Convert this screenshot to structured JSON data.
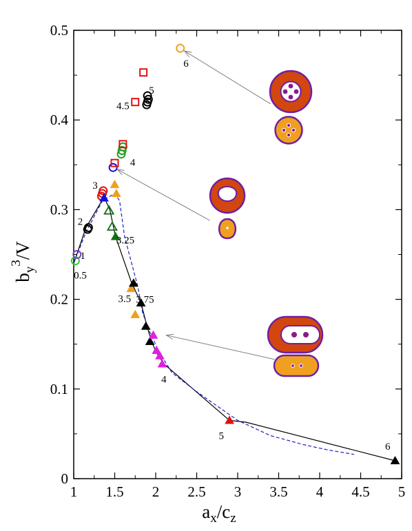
{
  "chart_data": {
    "type": "scatter",
    "xlabel_main": "a",
    "xlabel_sub1": "x",
    "xlabel_mid": "/c",
    "xlabel_sub2": "z",
    "ylabel_main": "b",
    "ylabel_sub": "y",
    "ylabel_sup": "3",
    "ylabel_tail": "/V",
    "xlim": [
      1,
      5
    ],
    "ylim": [
      0,
      0.5
    ],
    "xticks": [
      1,
      1.5,
      2,
      2.5,
      3,
      3.5,
      4,
      4.5,
      5
    ],
    "xtick_labels": [
      "1",
      "1.5",
      "2",
      "2.5",
      "3",
      "3.5",
      "4",
      "4.5",
      "5"
    ],
    "yticks": [
      0,
      0.1,
      0.2,
      0.3,
      0.4,
      0.5
    ],
    "ytick_labels": [
      "0",
      "0.1",
      "0.2",
      "0.3",
      "0.4",
      "0.5"
    ],
    "colors": {
      "light_green": "#33cc33",
      "purple": "#8040c0",
      "black": "#000000",
      "red": "#e01010",
      "blue": "#1010e0",
      "dark_green": "#107010",
      "green": "#20a020",
      "orange": "#f0a020",
      "magenta": "#e020e0",
      "dashed_line": "#2020c0",
      "blob_outer": "#d2460f",
      "blob_inner": "#f0a020",
      "blob_rim": "#7020a0",
      "blob_hole": "#ffffff",
      "blob_dot": "#8a1a8a"
    },
    "series": [
      {
        "marker": "circle-open",
        "color": "#33cc33",
        "points": [
          [
            1.02,
            0.243
          ]
        ]
      },
      {
        "marker": "circle-open",
        "color": "#8040c0",
        "points": [
          [
            1.04,
            0.25
          ]
        ]
      },
      {
        "marker": "circle-open",
        "color": "#000000",
        "points": [
          [
            1.17,
            0.278
          ],
          [
            1.18,
            0.28
          ],
          [
            1.89,
            0.417
          ],
          [
            1.9,
            0.42
          ],
          [
            1.91,
            0.423
          ],
          [
            1.9,
            0.427
          ]
        ]
      },
      {
        "marker": "circle-open",
        "color": "#e01010",
        "points": [
          [
            1.34,
            0.315
          ],
          [
            1.35,
            0.318
          ],
          [
            1.36,
            0.321
          ]
        ]
      },
      {
        "marker": "circle-open",
        "color": "#1010e0",
        "points": [
          [
            1.48,
            0.347
          ]
        ]
      },
      {
        "marker": "circle-open",
        "color": "#20a020",
        "points": [
          [
            1.58,
            0.362
          ],
          [
            1.59,
            0.366
          ],
          [
            1.6,
            0.37
          ]
        ]
      },
      {
        "marker": "circle-open",
        "color": "#f0a020",
        "points": [
          [
            2.3,
            0.48
          ]
        ]
      },
      {
        "marker": "square-open",
        "color": "#e01010",
        "points": [
          [
            1.5,
            0.352
          ],
          [
            1.6,
            0.373
          ],
          [
            1.75,
            0.42
          ],
          [
            1.85,
            0.453
          ]
        ]
      },
      {
        "marker": "triangle-filled",
        "color": "#1010e0",
        "points": [
          [
            1.37,
            0.313
          ]
        ]
      },
      {
        "marker": "triangle-filled",
        "color": "#f0a020",
        "points": [
          [
            1.5,
            0.328
          ],
          [
            1.52,
            0.318
          ],
          [
            1.7,
            0.212
          ],
          [
            1.75,
            0.183
          ]
        ]
      },
      {
        "marker": "triangle-open",
        "color": "#107010",
        "points": [
          [
            1.43,
            0.299
          ],
          [
            1.47,
            0.281
          ]
        ]
      },
      {
        "marker": "triangle-filled",
        "color": "#107010",
        "points": [
          [
            1.51,
            0.27
          ]
        ]
      },
      {
        "marker": "triangle-filled",
        "color": "#000000",
        "points": [
          [
            1.73,
            0.218
          ],
          [
            1.82,
            0.196
          ],
          [
            1.88,
            0.17
          ],
          [
            1.93,
            0.153
          ],
          [
            4.92,
            0.02
          ]
        ]
      },
      {
        "marker": "triangle-filled",
        "color": "#e020e0",
        "points": [
          [
            1.97,
            0.16
          ],
          [
            2.01,
            0.143
          ],
          [
            2.05,
            0.137
          ],
          [
            2.08,
            0.128
          ]
        ]
      },
      {
        "marker": "triangle-filled",
        "color": "#e01010",
        "points": [
          [
            2.9,
            0.065
          ]
        ]
      }
    ],
    "solid_line": [
      [
        1.0,
        0.24
      ],
      [
        1.15,
        0.28
      ],
      [
        1.37,
        0.314
      ],
      [
        1.44,
        0.3
      ],
      [
        1.51,
        0.27
      ],
      [
        1.7,
        0.22
      ],
      [
        1.82,
        0.196
      ],
      [
        1.9,
        0.168
      ],
      [
        1.95,
        0.153
      ],
      [
        2.0,
        0.142
      ],
      [
        2.1,
        0.128
      ],
      [
        2.9,
        0.065
      ],
      [
        3.1,
        0.063
      ],
      [
        4.92,
        0.02
      ]
    ],
    "dashed_line": [
      [
        1.0,
        0.24
      ],
      [
        1.15,
        0.275
      ],
      [
        1.35,
        0.31
      ],
      [
        1.5,
        0.318
      ],
      [
        1.56,
        0.31
      ],
      [
        1.62,
        0.27
      ],
      [
        1.78,
        0.215
      ],
      [
        1.84,
        0.185
      ],
      [
        1.92,
        0.165
      ],
      [
        2.05,
        0.14
      ],
      [
        2.2,
        0.118
      ],
      [
        2.5,
        0.097
      ],
      [
        3.0,
        0.065
      ],
      [
        3.4,
        0.048
      ],
      [
        3.8,
        0.038
      ],
      [
        4.1,
        0.032
      ],
      [
        4.42,
        0.027
      ]
    ],
    "annotations": [
      {
        "text": "0.5",
        "x": 1.08,
        "y": 0.227
      },
      {
        "text": "1",
        "x": 1.11,
        "y": 0.249
      },
      {
        "text": "2",
        "x": 1.08,
        "y": 0.287
      },
      {
        "text": "3",
        "x": 1.26,
        "y": 0.327
      },
      {
        "text": "3.25",
        "x": 1.63,
        "y": 0.266
      },
      {
        "text": "3.5",
        "x": 1.62,
        "y": 0.201
      },
      {
        "text": "3.75",
        "x": 1.87,
        "y": 0.2
      },
      {
        "text": "4",
        "x": 2.1,
        "y": 0.111
      },
      {
        "text": "4",
        "x": 1.72,
        "y": 0.353
      },
      {
        "text": "4.5",
        "x": 1.6,
        "y": 0.416
      },
      {
        "text": "5",
        "x": 1.95,
        "y": 0.433
      },
      {
        "text": "5",
        "x": 2.8,
        "y": 0.048
      },
      {
        "text": "6",
        "x": 2.37,
        "y": 0.463
      },
      {
        "text": "6",
        "x": 4.83,
        "y": 0.036
      }
    ],
    "arrows": [
      {
        "from": [
          3.4,
          0.418
        ],
        "to": [
          2.35,
          0.477
        ]
      },
      {
        "from": [
          2.66,
          0.288
        ],
        "to": [
          1.53,
          0.345
        ]
      },
      {
        "from": [
          3.45,
          0.133
        ],
        "to": [
          2.13,
          0.16
        ]
      }
    ]
  }
}
